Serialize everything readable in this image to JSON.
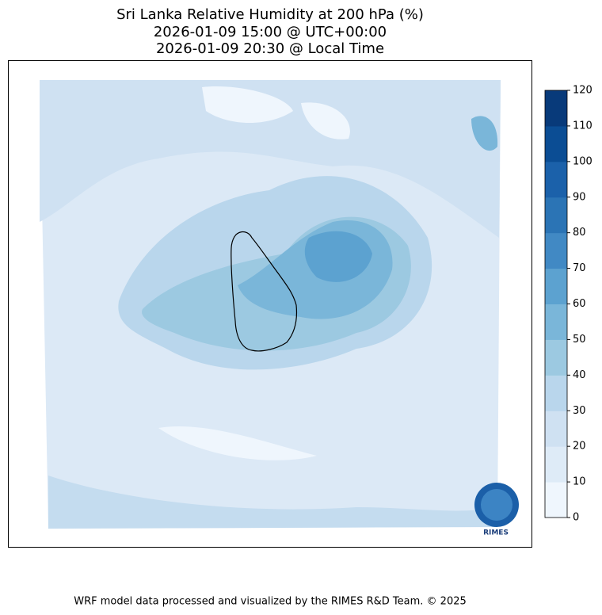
{
  "title": [
    "Sri Lanka Relative Humidity at 200 hPa (%)",
    "2026-01-09 15:00 @ UTC+00:00",
    "2026-01-09 20:30 @ Local Time"
  ],
  "colorbar": {
    "lim": [
      0,
      120
    ],
    "ticks": [
      0,
      10,
      20,
      30,
      40,
      50,
      60,
      70,
      80,
      90,
      100,
      110,
      120
    ],
    "colors": [
      "#eff6fd",
      "#deebf7",
      "#cfe1f2",
      "#b9d6ec",
      "#9cc9e1",
      "#7ab6d9",
      "#5ca2d0",
      "#4189c4",
      "#2b74b5",
      "#1b61aa",
      "#0b4d94",
      "#083a7a"
    ]
  },
  "logo": "RIMES",
  "footer": "WRF model data processed and visualized by the RIMES R&D Team. © 2025"
}
